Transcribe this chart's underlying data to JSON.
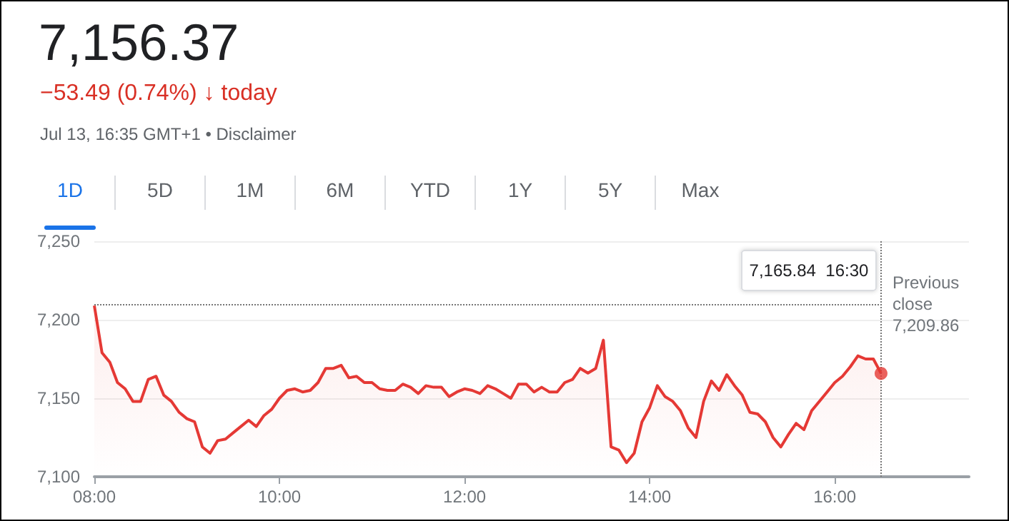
{
  "chart_data": {
    "type": "area",
    "title": "7,156.37",
    "subtitle": "−53.49 (0.74%) ↓ today",
    "annotations": [
      "Jul 13, 16:35 GMT+1 • Disclaimer",
      "1D",
      "5D",
      "1M",
      "6M",
      "YTD",
      "1Y",
      "5Y",
      "Max",
      "7,165.84  16:30"
    ],
    "x": [
      8,
      8.083,
      8.167,
      8.25,
      8.333,
      8.417,
      8.5,
      8.583,
      8.667,
      8.75,
      8.833,
      8.917,
      9,
      9.083,
      9.167,
      9.25,
      9.333,
      9.417,
      9.5,
      9.583,
      9.667,
      9.75,
      9.833,
      9.917,
      10,
      10.083,
      10.167,
      10.25,
      10.333,
      10.417,
      10.5,
      10.583,
      10.667,
      10.75,
      10.833,
      10.917,
      11,
      11.083,
      11.167,
      11.25,
      11.333,
      11.417,
      11.5,
      11.583,
      11.667,
      11.75,
      11.833,
      11.917,
      12,
      12.083,
      12.167,
      12.25,
      12.333,
      12.417,
      12.5,
      12.583,
      12.667,
      12.75,
      12.833,
      12.917,
      13,
      13.083,
      13.167,
      13.25,
      13.333,
      13.417,
      13.5,
      13.583,
      13.667,
      13.75,
      13.833,
      13.917,
      14,
      14.083,
      14.167,
      14.25,
      14.333,
      14.417,
      14.5,
      14.583,
      14.667,
      14.75,
      14.833,
      14.917,
      15,
      15.083,
      15.167,
      15.25,
      15.333,
      15.417,
      15.5,
      15.583,
      15.667,
      15.75,
      15.833,
      15.917,
      16,
      16.083,
      16.167,
      16.25,
      16.333,
      16.417,
      16.5
    ],
    "series": [
      {
        "color": "#e53935",
        "values": [
          7209,
          7179,
          7173,
          7160,
          7156,
          7148,
          7148,
          7162,
          7164,
          7152,
          7148,
          7141,
          7137,
          7135,
          7119,
          7115,
          7123,
          7124,
          7128,
          7132,
          7136,
          7132,
          7139,
          7143,
          7150,
          7155,
          7156,
          7154,
          7155,
          7160,
          7169,
          7169,
          7171,
          7163,
          7164,
          7160,
          7160,
          7156,
          7155,
          7155,
          7159,
          7157,
          7153,
          7158,
          7157,
          7157,
          7151,
          7154,
          7156,
          7155,
          7153,
          7158,
          7156,
          7153,
          7150,
          7159,
          7159,
          7154,
          7157,
          7154,
          7154,
          7160,
          7162,
          7169,
          7166,
          7169,
          7187,
          7119,
          7117,
          7109,
          7115,
          7135,
          7144,
          7158,
          7151,
          7148,
          7142,
          7131,
          7125,
          7148,
          7161,
          7155,
          7165,
          7158,
          7152,
          7141,
          7140,
          7135,
          7125,
          7119,
          7127,
          7134,
          7130,
          7142,
          7148,
          7154,
          7160,
          7164,
          7170,
          7177,
          7175,
          7175,
          7165.84
        ]
      },
      {
        "type": "scatter",
        "color": "#e53935",
        "x": [
          16.5
        ],
        "values": [
          7165.84
        ]
      }
    ],
    "xlim": [
      8,
      17.45
    ],
    "xticks": [
      {
        "value": 8,
        "label": "08:00"
      },
      {
        "value": 10,
        "label": "10:00"
      },
      {
        "value": 12,
        "label": "12:00"
      },
      {
        "value": 14,
        "label": "14:00"
      },
      {
        "value": 16,
        "label": "16:00"
      }
    ],
    "ylim": [
      7100,
      7250
    ],
    "yticks": [
      {
        "value": 7100,
        "label": "7,100"
      },
      {
        "value": 7150,
        "label": "7,150"
      },
      {
        "value": 7200,
        "label": "7,200"
      },
      {
        "value": 7250,
        "label": "7,250"
      }
    ],
    "ref_lines": [
      {
        "axis": "y",
        "value": 7209.86,
        "label": "Previous close 7,209.86",
        "line_style": "dotted",
        "color": "#777777"
      },
      {
        "axis": "x",
        "value": 16.5,
        "label": null,
        "line_style": "dotted",
        "color": "#777777"
      }
    ],
    "grid": "y",
    "line_style": "solid"
  }
}
